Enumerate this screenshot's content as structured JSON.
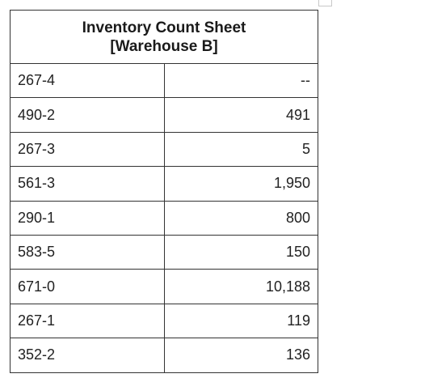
{
  "sheet": {
    "title_line1": "Inventory Count Sheet",
    "title_line2": "[Warehouse B]",
    "rows": [
      {
        "item": "267-4",
        "qty": "--"
      },
      {
        "item": "490-2",
        "qty": "491"
      },
      {
        "item": "267-3",
        "qty": "5"
      },
      {
        "item": "561-3",
        "qty": "1,950"
      },
      {
        "item": "290-1",
        "qty": "800"
      },
      {
        "item": "583-5",
        "qty": "150"
      },
      {
        "item": "671-0",
        "qty": "10,188"
      },
      {
        "item": "267-1",
        "qty": "119"
      },
      {
        "item": "352-2",
        "qty": "136"
      }
    ]
  }
}
